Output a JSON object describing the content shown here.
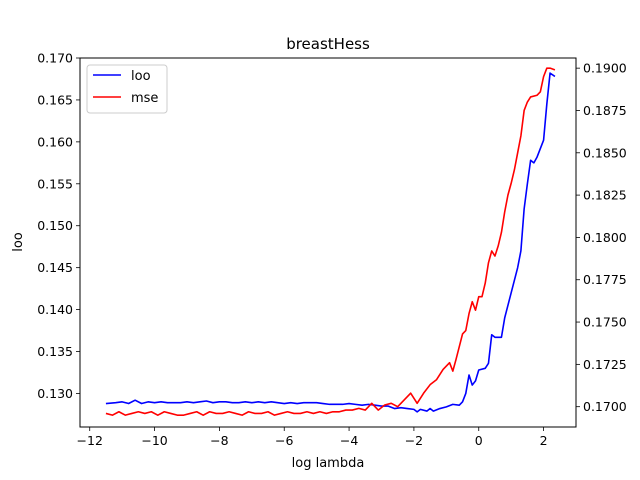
{
  "chart_data": {
    "type": "line",
    "title": "breastHess",
    "xlabel": "log lambda",
    "ylabel": "loo",
    "xlim": [
      -12.3,
      3.0
    ],
    "ylim_left": [
      0.126,
      0.17
    ],
    "ylim_right": [
      0.1688,
      0.1906
    ],
    "x_ticks": [
      "−12",
      "−10",
      "−8",
      "−6",
      "−4",
      "−2",
      "0",
      "2"
    ],
    "left_ticks": [
      "0.130",
      "0.135",
      "0.140",
      "0.145",
      "0.150",
      "0.155",
      "0.160",
      "0.165",
      "0.170"
    ],
    "right_ticks": [
      "0.1700",
      "0.1725",
      "0.1750",
      "0.1775",
      "0.1800",
      "0.1825",
      "0.1850",
      "0.1875",
      "0.1900"
    ],
    "legend_position": "upper left",
    "series": [
      {
        "name": "loo",
        "axis": "left",
        "color": "#0000ff",
        "points": [
          [
            -11.5,
            0.1288
          ],
          [
            -11.2,
            0.1289
          ],
          [
            -11.0,
            0.129
          ],
          [
            -10.8,
            0.1288
          ],
          [
            -10.6,
            0.1292
          ],
          [
            -10.4,
            0.1288
          ],
          [
            -10.2,
            0.129
          ],
          [
            -10.0,
            0.1289
          ],
          [
            -9.8,
            0.129
          ],
          [
            -9.6,
            0.1289
          ],
          [
            -9.4,
            0.1289
          ],
          [
            -9.2,
            0.1289
          ],
          [
            -9.0,
            0.129
          ],
          [
            -8.8,
            0.1289
          ],
          [
            -8.6,
            0.129
          ],
          [
            -8.4,
            0.1291
          ],
          [
            -8.2,
            0.1289
          ],
          [
            -8.0,
            0.129
          ],
          [
            -7.8,
            0.129
          ],
          [
            -7.6,
            0.1289
          ],
          [
            -7.4,
            0.1289
          ],
          [
            -7.2,
            0.129
          ],
          [
            -7.0,
            0.1289
          ],
          [
            -6.8,
            0.129
          ],
          [
            -6.6,
            0.1289
          ],
          [
            -6.4,
            0.129
          ],
          [
            -6.2,
            0.1289
          ],
          [
            -6.0,
            0.1288
          ],
          [
            -5.8,
            0.1289
          ],
          [
            -5.6,
            0.1288
          ],
          [
            -5.4,
            0.1289
          ],
          [
            -5.2,
            0.1289
          ],
          [
            -5.0,
            0.1289
          ],
          [
            -4.8,
            0.1288
          ],
          [
            -4.6,
            0.1287
          ],
          [
            -4.4,
            0.1287
          ],
          [
            -4.2,
            0.1287
          ],
          [
            -4.0,
            0.1288
          ],
          [
            -3.8,
            0.1287
          ],
          [
            -3.6,
            0.1286
          ],
          [
            -3.4,
            0.1287
          ],
          [
            -3.2,
            0.1286
          ],
          [
            -3.0,
            0.1285
          ],
          [
            -2.8,
            0.1285
          ],
          [
            -2.6,
            0.1282
          ],
          [
            -2.4,
            0.1283
          ],
          [
            -2.2,
            0.1282
          ],
          [
            -2.0,
            0.1281
          ],
          [
            -1.9,
            0.1278
          ],
          [
            -1.8,
            0.1281
          ],
          [
            -1.6,
            0.1279
          ],
          [
            -1.5,
            0.1282
          ],
          [
            -1.4,
            0.1279
          ],
          [
            -1.2,
            0.1282
          ],
          [
            -1.0,
            0.1284
          ],
          [
            -0.8,
            0.1287
          ],
          [
            -0.6,
            0.1286
          ],
          [
            -0.5,
            0.129
          ],
          [
            -0.4,
            0.13
          ],
          [
            -0.3,
            0.1322
          ],
          [
            -0.2,
            0.131
          ],
          [
            -0.1,
            0.1315
          ],
          [
            0.0,
            0.1328
          ],
          [
            0.2,
            0.133
          ],
          [
            0.3,
            0.1336
          ],
          [
            0.4,
            0.137
          ],
          [
            0.5,
            0.1367
          ],
          [
            0.7,
            0.1367
          ],
          [
            0.8,
            0.139
          ],
          [
            1.0,
            0.142
          ],
          [
            1.2,
            0.145
          ],
          [
            1.3,
            0.147
          ],
          [
            1.4,
            0.152
          ],
          [
            1.5,
            0.155
          ],
          [
            1.6,
            0.1578
          ],
          [
            1.7,
            0.1575
          ],
          [
            1.8,
            0.1582
          ],
          [
            2.0,
            0.1602
          ],
          [
            2.1,
            0.1645
          ],
          [
            2.2,
            0.1682
          ],
          [
            2.35,
            0.1678
          ]
        ]
      },
      {
        "name": "mse",
        "axis": "right",
        "color": "#ff0000",
        "points": [
          [
            -11.5,
            0.1696
          ],
          [
            -11.3,
            0.1695
          ],
          [
            -11.1,
            0.1697
          ],
          [
            -10.9,
            0.1695
          ],
          [
            -10.7,
            0.1696
          ],
          [
            -10.5,
            0.1697
          ],
          [
            -10.3,
            0.1696
          ],
          [
            -10.1,
            0.1697
          ],
          [
            -9.9,
            0.1695
          ],
          [
            -9.7,
            0.1697
          ],
          [
            -9.5,
            0.1696
          ],
          [
            -9.3,
            0.1695
          ],
          [
            -9.1,
            0.1695
          ],
          [
            -8.9,
            0.1696
          ],
          [
            -8.7,
            0.1697
          ],
          [
            -8.5,
            0.1695
          ],
          [
            -8.3,
            0.1697
          ],
          [
            -8.1,
            0.1696
          ],
          [
            -7.9,
            0.1696
          ],
          [
            -7.7,
            0.1697
          ],
          [
            -7.5,
            0.1696
          ],
          [
            -7.3,
            0.1695
          ],
          [
            -7.1,
            0.1697
          ],
          [
            -6.9,
            0.1696
          ],
          [
            -6.7,
            0.1696
          ],
          [
            -6.5,
            0.1697
          ],
          [
            -6.3,
            0.1695
          ],
          [
            -6.1,
            0.1696
          ],
          [
            -5.9,
            0.1697
          ],
          [
            -5.7,
            0.1696
          ],
          [
            -5.5,
            0.1696
          ],
          [
            -5.3,
            0.1697
          ],
          [
            -5.1,
            0.1696
          ],
          [
            -4.9,
            0.1697
          ],
          [
            -4.7,
            0.1696
          ],
          [
            -4.5,
            0.1697
          ],
          [
            -4.3,
            0.1697
          ],
          [
            -4.1,
            0.1698
          ],
          [
            -3.9,
            0.1698
          ],
          [
            -3.7,
            0.1699
          ],
          [
            -3.5,
            0.1698
          ],
          [
            -3.3,
            0.1702
          ],
          [
            -3.1,
            0.1698
          ],
          [
            -2.9,
            0.1701
          ],
          [
            -2.7,
            0.1702
          ],
          [
            -2.5,
            0.17
          ],
          [
            -2.3,
            0.1704
          ],
          [
            -2.1,
            0.1708
          ],
          [
            -1.9,
            0.1702
          ],
          [
            -1.7,
            0.1708
          ],
          [
            -1.5,
            0.1713
          ],
          [
            -1.3,
            0.1716
          ],
          [
            -1.1,
            0.1722
          ],
          [
            -0.9,
            0.1726
          ],
          [
            -0.8,
            0.1721
          ],
          [
            -0.7,
            0.1728
          ],
          [
            -0.5,
            0.1743
          ],
          [
            -0.4,
            0.1745
          ],
          [
            -0.3,
            0.1755
          ],
          [
            -0.2,
            0.1762
          ],
          [
            -0.1,
            0.1757
          ],
          [
            0.0,
            0.1765
          ],
          [
            0.1,
            0.1765
          ],
          [
            0.2,
            0.1773
          ],
          [
            0.3,
            0.1785
          ],
          [
            0.4,
            0.1792
          ],
          [
            0.5,
            0.1789
          ],
          [
            0.6,
            0.1795
          ],
          [
            0.7,
            0.1803
          ],
          [
            0.8,
            0.1815
          ],
          [
            0.9,
            0.1825
          ],
          [
            1.0,
            0.1832
          ],
          [
            1.1,
            0.184
          ],
          [
            1.2,
            0.185
          ],
          [
            1.3,
            0.186
          ],
          [
            1.4,
            0.1875
          ],
          [
            1.5,
            0.188
          ],
          [
            1.6,
            0.1883
          ],
          [
            1.8,
            0.1884
          ],
          [
            1.9,
            0.1886
          ],
          [
            2.0,
            0.1895
          ],
          [
            2.1,
            0.19
          ],
          [
            2.2,
            0.19
          ],
          [
            2.35,
            0.1899
          ]
        ]
      }
    ]
  }
}
